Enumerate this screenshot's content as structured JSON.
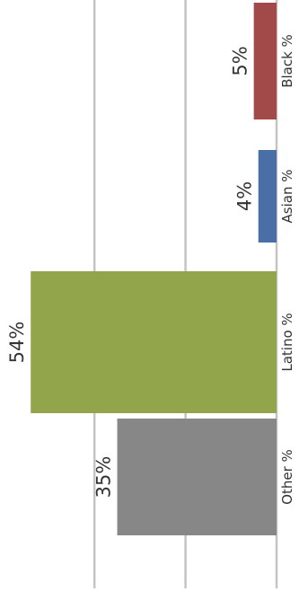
{
  "chart_data": {
    "type": "bar",
    "orientation": "horizontal",
    "categories": [
      "Black %",
      "Asian %",
      "Latino %",
      "Other %"
    ],
    "values": [
      5,
      4,
      54,
      35
    ],
    "value_labels": [
      "5%",
      "4%",
      "54%",
      "35%"
    ],
    "colors": [
      "#a24a4a",
      "#4a6ea6",
      "#92a54a",
      "#878787"
    ],
    "xlim": [
      0,
      60
    ],
    "grid": true,
    "grid_values": [
      0,
      20,
      40
    ],
    "title": "",
    "xlabel": "",
    "ylabel": ""
  }
}
